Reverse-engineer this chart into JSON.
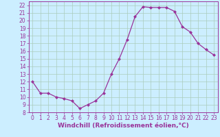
{
  "x": [
    0,
    1,
    2,
    3,
    4,
    5,
    6,
    7,
    8,
    9,
    10,
    11,
    12,
    13,
    14,
    15,
    16,
    17,
    18,
    19,
    20,
    21,
    22,
    23
  ],
  "y": [
    12,
    10.5,
    10.5,
    10,
    9.8,
    9.5,
    8.5,
    9,
    9.5,
    10.5,
    13,
    15,
    17.5,
    20.5,
    21.8,
    21.7,
    21.7,
    21.7,
    21.2,
    19.2,
    18.5,
    17,
    16.2,
    15.5
  ],
  "line_color": "#993399",
  "marker": "D",
  "markersize": 2.0,
  "linewidth": 0.9,
  "bg_color": "#cceeff",
  "grid_color": "#aaccbb",
  "xlabel": "Windchill (Refroidissement éolien,°C)",
  "xlabel_fontsize": 6.5,
  "xlabel_color": "#993399",
  "ylim": [
    8,
    22.5
  ],
  "xlim": [
    -0.5,
    23.5
  ],
  "yticks": [
    8,
    9,
    10,
    11,
    12,
    13,
    14,
    15,
    16,
    17,
    18,
    19,
    20,
    21,
    22
  ],
  "xticks": [
    0,
    1,
    2,
    3,
    4,
    5,
    6,
    7,
    8,
    9,
    10,
    11,
    12,
    13,
    14,
    15,
    16,
    17,
    18,
    19,
    20,
    21,
    22,
    23
  ],
  "tick_fontsize": 5.5,
  "tick_color": "#993399",
  "spine_color": "#993399"
}
